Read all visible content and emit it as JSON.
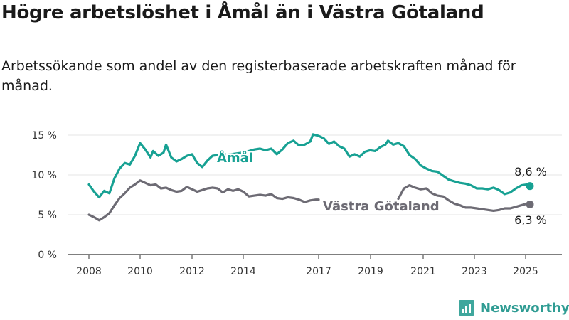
{
  "title": "Högre arbetslöshet i Åmål än i Västra Götaland",
  "subtitle": "Arbetssökande som andel av den registerbaserade arbetskraften månad för månad.",
  "brand": {
    "name": "Newsworthy",
    "icon": "bar-chart-logo-icon"
  },
  "colors": {
    "amal": "#17a193",
    "vg": "#6d6b74",
    "axis": "#333333",
    "grid": "#e6e6e6",
    "brand": "#2f9c93"
  },
  "chart_data": {
    "type": "line",
    "x_ticks": [
      "2008",
      "2010",
      "2012",
      "2014",
      "2017",
      "2019",
      "2021",
      "2023",
      "2025"
    ],
    "y_ticks": [
      "0 %",
      "5 %",
      "10 %",
      "15 %"
    ],
    "ylim": [
      0,
      15
    ],
    "grid": "horizontal",
    "series": [
      {
        "name": "Åmål",
        "color": "#17a193",
        "label_position": "inline",
        "end_label": "8,6 %",
        "points": [
          [
            2008.0,
            8.8
          ],
          [
            2008.2,
            7.9
          ],
          [
            2008.4,
            7.2
          ],
          [
            2008.6,
            8.0
          ],
          [
            2008.8,
            7.7
          ],
          [
            2009.0,
            9.6
          ],
          [
            2009.2,
            10.8
          ],
          [
            2009.4,
            11.5
          ],
          [
            2009.6,
            11.3
          ],
          [
            2009.8,
            12.4
          ],
          [
            2010.0,
            14.0
          ],
          [
            2010.2,
            13.2
          ],
          [
            2010.4,
            12.2
          ],
          [
            2010.5,
            13.0
          ],
          [
            2010.7,
            12.4
          ],
          [
            2010.9,
            12.8
          ],
          [
            2011.0,
            13.8
          ],
          [
            2011.2,
            12.2
          ],
          [
            2011.4,
            11.7
          ],
          [
            2011.6,
            12.0
          ],
          [
            2011.8,
            12.4
          ],
          [
            2012.0,
            12.6
          ],
          [
            2012.2,
            11.5
          ],
          [
            2012.4,
            11.0
          ],
          [
            2012.6,
            11.8
          ],
          [
            2012.8,
            12.4
          ],
          [
            2013.0,
            12.5
          ],
          [
            2013.5,
            12.6
          ],
          [
            2014.0,
            12.8
          ],
          [
            2014.2,
            13.0
          ],
          [
            2014.4,
            13.2
          ],
          [
            2014.6,
            13.3
          ],
          [
            2014.8,
            13.1
          ],
          [
            2015.0,
            13.3
          ],
          [
            2015.2,
            12.6
          ],
          [
            2015.4,
            13.2
          ],
          [
            2015.6,
            14.0
          ],
          [
            2015.8,
            14.3
          ],
          [
            2016.0,
            13.7
          ],
          [
            2016.2,
            13.8
          ],
          [
            2016.4,
            14.2
          ],
          [
            2016.5,
            15.1
          ],
          [
            2016.7,
            14.9
          ],
          [
            2016.9,
            14.6
          ],
          [
            2017.1,
            13.9
          ],
          [
            2017.3,
            14.2
          ],
          [
            2017.5,
            13.6
          ],
          [
            2017.7,
            13.3
          ],
          [
            2017.9,
            12.3
          ],
          [
            2018.1,
            12.6
          ],
          [
            2018.3,
            12.3
          ],
          [
            2018.5,
            12.9
          ],
          [
            2018.7,
            13.1
          ],
          [
            2018.9,
            13.0
          ],
          [
            2019.1,
            13.5
          ],
          [
            2019.3,
            13.8
          ],
          [
            2019.4,
            14.3
          ],
          [
            2019.6,
            13.8
          ],
          [
            2019.8,
            14.0
          ],
          [
            2020.0,
            13.6
          ],
          [
            2020.2,
            12.5
          ],
          [
            2020.4,
            12.0
          ],
          [
            2020.6,
            11.2
          ],
          [
            2020.8,
            10.8
          ],
          [
            2021.0,
            10.5
          ],
          [
            2021.2,
            10.4
          ],
          [
            2021.4,
            9.9
          ],
          [
            2021.6,
            9.4
          ],
          [
            2021.8,
            9.2
          ],
          [
            2022.0,
            9.0
          ],
          [
            2022.2,
            8.9
          ],
          [
            2022.4,
            8.7
          ],
          [
            2022.6,
            8.3
          ],
          [
            2022.8,
            8.3
          ],
          [
            2023.0,
            8.2
          ],
          [
            2023.2,
            8.4
          ],
          [
            2023.4,
            8.1
          ],
          [
            2023.6,
            7.6
          ],
          [
            2023.8,
            7.8
          ],
          [
            2024.0,
            8.3
          ],
          [
            2024.2,
            8.7
          ],
          [
            2024.4,
            8.8
          ],
          [
            2024.5,
            8.6
          ]
        ]
      },
      {
        "name": "Västra Götaland",
        "color": "#6d6b74",
        "label_position": "inline",
        "end_label": "6,3 %",
        "points": [
          [
            2008.0,
            5.0
          ],
          [
            2008.2,
            4.7
          ],
          [
            2008.4,
            4.3
          ],
          [
            2008.6,
            4.7
          ],
          [
            2008.8,
            5.2
          ],
          [
            2009.0,
            6.2
          ],
          [
            2009.2,
            7.1
          ],
          [
            2009.4,
            7.7
          ],
          [
            2009.6,
            8.4
          ],
          [
            2009.8,
            8.8
          ],
          [
            2010.0,
            9.3
          ],
          [
            2010.2,
            9.0
          ],
          [
            2010.4,
            8.7
          ],
          [
            2010.6,
            8.8
          ],
          [
            2010.8,
            8.3
          ],
          [
            2011.0,
            8.4
          ],
          [
            2011.2,
            8.1
          ],
          [
            2011.4,
            7.9
          ],
          [
            2011.6,
            8.0
          ],
          [
            2011.8,
            8.5
          ],
          [
            2012.0,
            8.2
          ],
          [
            2012.2,
            7.9
          ],
          [
            2012.4,
            8.1
          ],
          [
            2012.6,
            8.3
          ],
          [
            2012.8,
            8.4
          ],
          [
            2013.0,
            8.3
          ],
          [
            2013.2,
            7.8
          ],
          [
            2013.4,
            8.2
          ],
          [
            2013.6,
            8.0
          ],
          [
            2013.8,
            8.2
          ],
          [
            2014.0,
            7.9
          ],
          [
            2014.2,
            7.3
          ],
          [
            2014.4,
            7.4
          ],
          [
            2014.6,
            7.5
          ],
          [
            2014.8,
            7.4
          ],
          [
            2015.0,
            7.6
          ],
          [
            2015.2,
            7.1
          ],
          [
            2015.4,
            7.0
          ],
          [
            2015.6,
            7.2
          ],
          [
            2015.8,
            7.1
          ],
          [
            2016.0,
            6.9
          ],
          [
            2016.2,
            6.6
          ],
          [
            2016.4,
            6.8
          ],
          [
            2016.6,
            6.9
          ],
          [
            2016.7,
            6.9
          ],
          [
            2019.8,
            7.0
          ],
          [
            2020.0,
            8.3
          ],
          [
            2020.2,
            8.7
          ],
          [
            2020.4,
            8.4
          ],
          [
            2020.6,
            8.2
          ],
          [
            2020.8,
            8.3
          ],
          [
            2021.0,
            7.7
          ],
          [
            2021.2,
            7.4
          ],
          [
            2021.4,
            7.3
          ],
          [
            2021.6,
            6.8
          ],
          [
            2021.8,
            6.4
          ],
          [
            2022.0,
            6.2
          ],
          [
            2022.2,
            5.9
          ],
          [
            2022.4,
            5.9
          ],
          [
            2022.6,
            5.8
          ],
          [
            2022.8,
            5.7
          ],
          [
            2023.0,
            5.6
          ],
          [
            2023.2,
            5.5
          ],
          [
            2023.4,
            5.6
          ],
          [
            2023.6,
            5.8
          ],
          [
            2023.8,
            5.8
          ],
          [
            2024.0,
            6.0
          ],
          [
            2024.2,
            6.2
          ],
          [
            2024.4,
            6.4
          ],
          [
            2024.5,
            6.3
          ]
        ]
      }
    ]
  }
}
